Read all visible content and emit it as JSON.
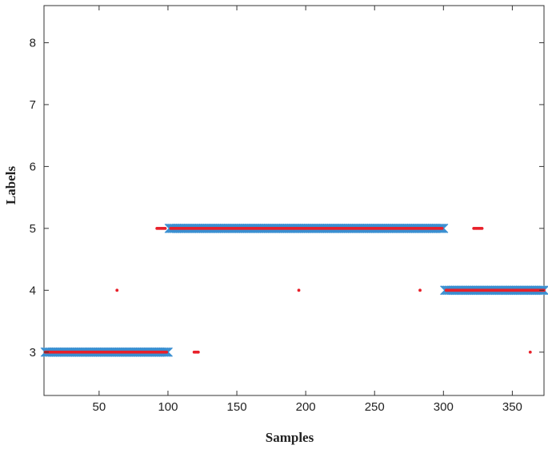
{
  "chart_data": {
    "type": "scatter",
    "xlabel": "Samples",
    "ylabel": "Labels",
    "xlim": [
      10,
      373
    ],
    "ylim": [
      2.3,
      8.6
    ],
    "xticks": [
      50,
      100,
      150,
      200,
      250,
      300,
      350
    ],
    "yticks": [
      3,
      4,
      5,
      6,
      7,
      8
    ],
    "grid": false,
    "legend": "none",
    "colors": {
      "true_labels": "#3a8fd1",
      "predicted_labels": "#e8202a"
    },
    "series": [
      {
        "marker": "x",
        "segments": [
          {
            "x_start": 11,
            "x_end": 100,
            "y": 3
          },
          {
            "x_start": 101,
            "x_end": 300,
            "y": 5
          },
          {
            "x_start": 301,
            "x_end": 373,
            "y": 4
          }
        ]
      },
      {
        "marker": "dot",
        "segments": [
          {
            "x_start": 11,
            "x_end": 99,
            "y": 3
          },
          {
            "x_start": 102,
            "x_end": 299,
            "y": 5
          },
          {
            "x_start": 302,
            "x_end": 373,
            "y": 4
          },
          {
            "x_start": 92,
            "x_end": 98,
            "y": 5
          },
          {
            "x_start": 119,
            "x_end": 122,
            "y": 3
          },
          {
            "x_start": 322,
            "x_end": 328,
            "y": 5
          }
        ],
        "points": [
          {
            "x": 63,
            "y": 4
          },
          {
            "x": 195,
            "y": 4
          },
          {
            "x": 283,
            "y": 4
          },
          {
            "x": 363,
            "y": 3
          }
        ]
      }
    ]
  }
}
